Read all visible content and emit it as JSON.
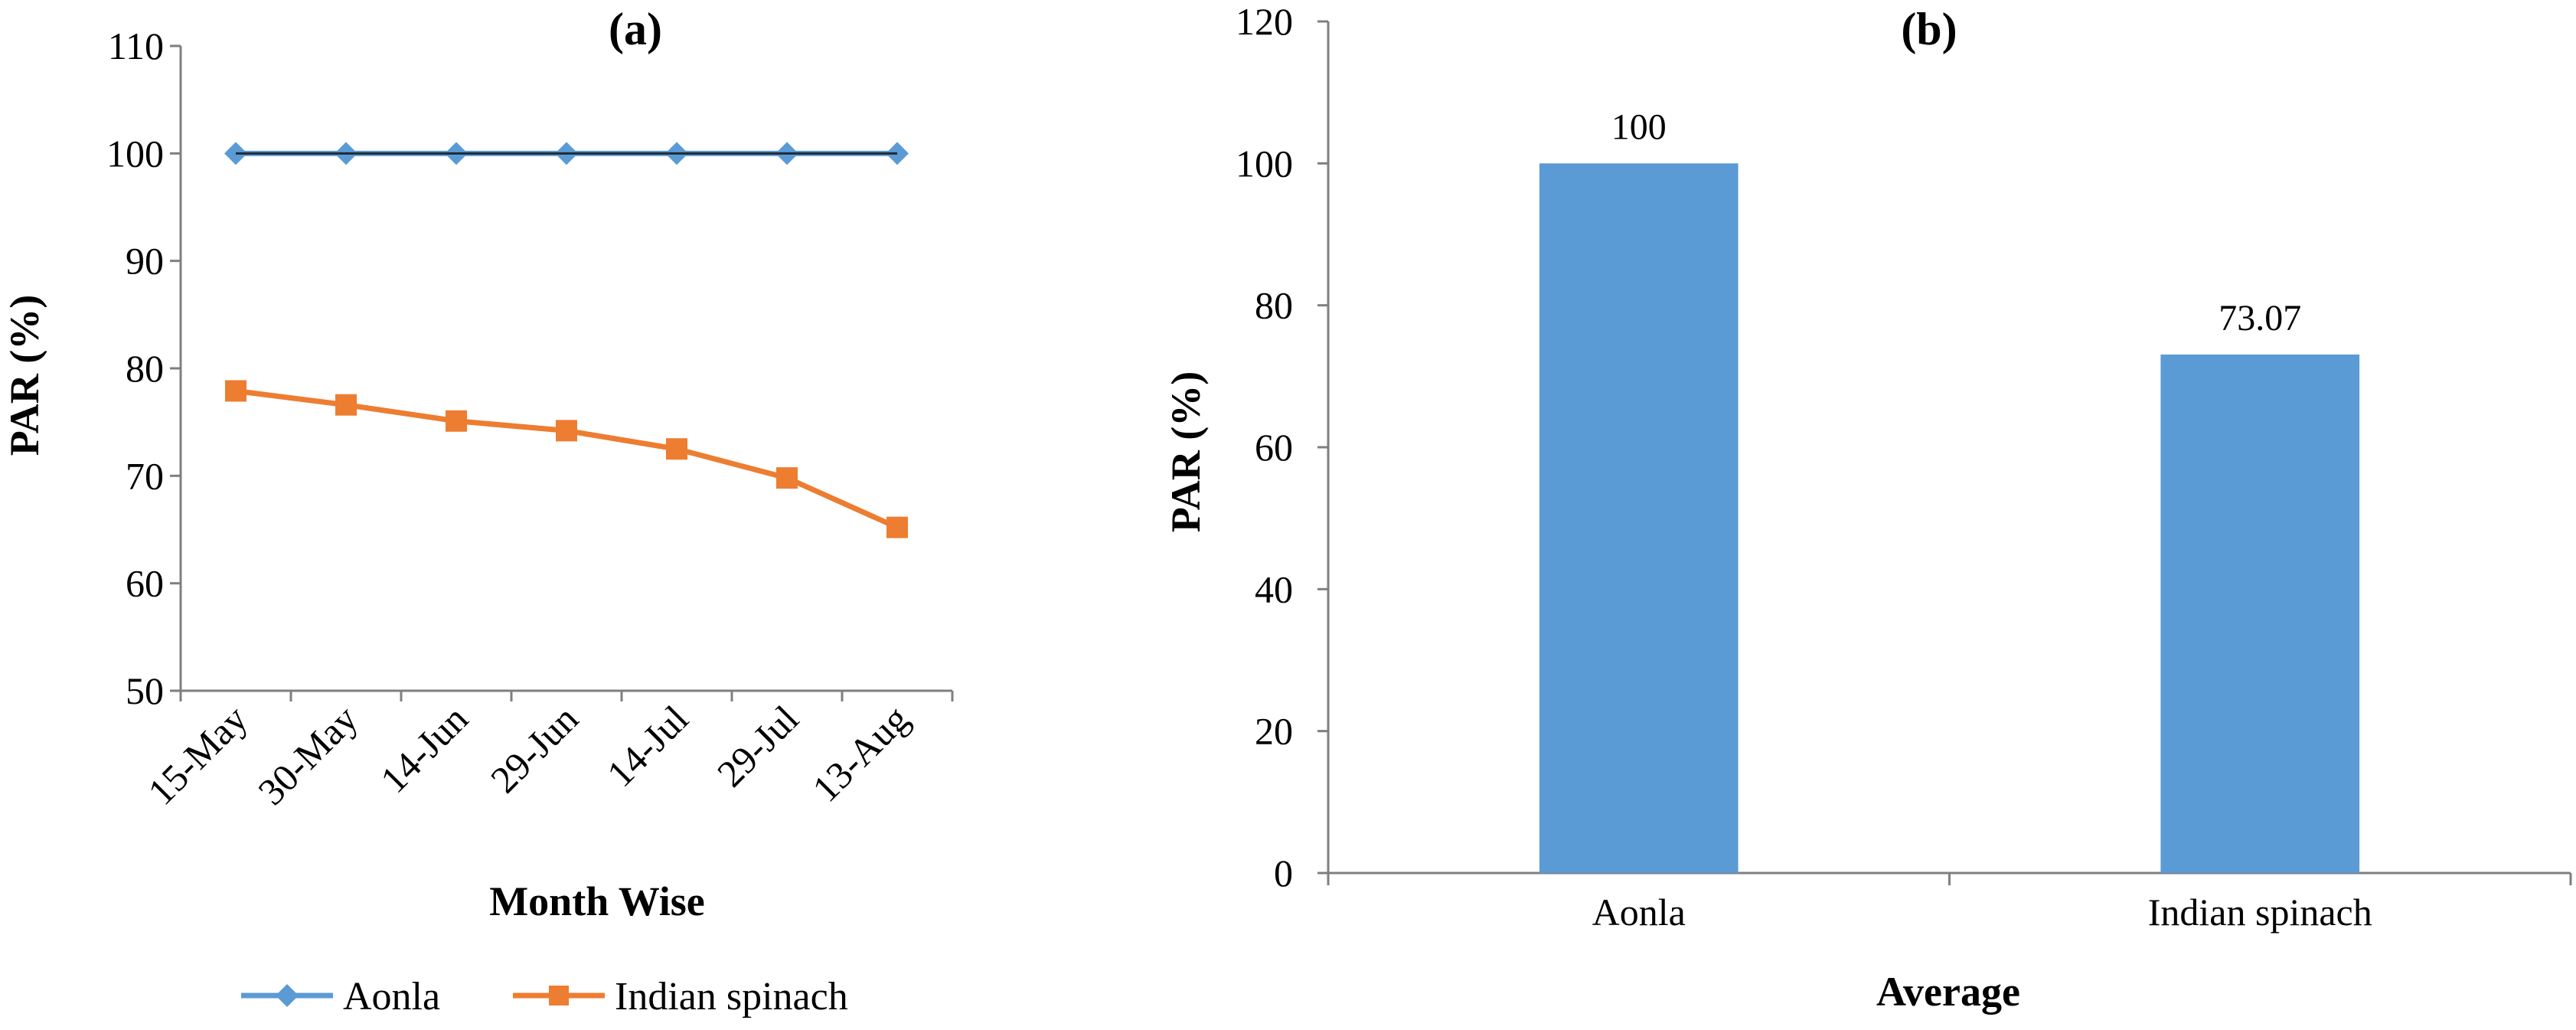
{
  "chart_data": [
    {
      "type": "line",
      "panel_label": "(a)",
      "title": "(a)",
      "xlabel": "Month Wise",
      "ylabel": "PAR (%)",
      "categories": [
        "15-May",
        "30-May",
        "14-Jun",
        "29-Jun",
        "14-Jul",
        "29-Jul",
        "13-Aug"
      ],
      "ylim": [
        50,
        110
      ],
      "yticks": [
        50,
        60,
        70,
        80,
        90,
        100,
        110
      ],
      "grid": false,
      "legend_position": "bottom",
      "series": [
        {
          "name": "Aonla",
          "color": "#5B9BD5",
          "marker": "diamond",
          "values": [
            100,
            100,
            100,
            100,
            100,
            100,
            100
          ]
        },
        {
          "name": "Indian spinach",
          "color": "#ED7D31",
          "marker": "square",
          "values": [
            77.9,
            76.6,
            75.1,
            74.2,
            72.5,
            69.8,
            65.2
          ]
        }
      ]
    },
    {
      "type": "bar",
      "panel_label": "(b)",
      "title": "(b)",
      "xlabel": "Average",
      "ylabel": "PAR (%)",
      "categories": [
        "Aonla",
        "Indian spinach"
      ],
      "values": [
        100,
        73.07
      ],
      "data_labels": [
        "100",
        "73.07"
      ],
      "ylim": [
        0,
        120
      ],
      "yticks": [
        0,
        20,
        40,
        60,
        80,
        100,
        120
      ],
      "grid": false,
      "bar_color": "#5B9BD5"
    }
  ]
}
